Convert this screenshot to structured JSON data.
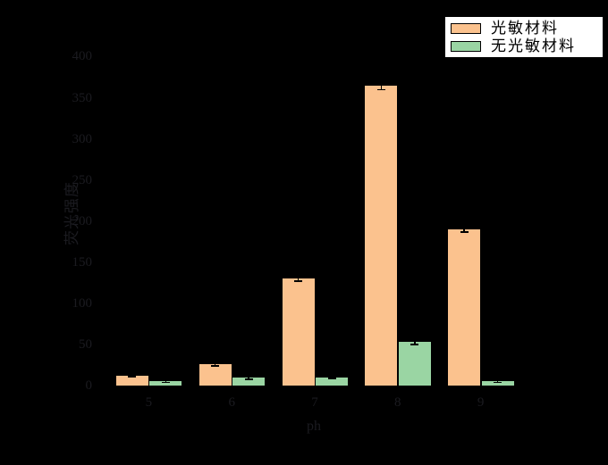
{
  "colors": {
    "background": "#000000",
    "axis_text": "#1b1b20",
    "error_bar": "#000000",
    "legend_background": "#ffffff",
    "legend_border": "#000000",
    "series1_color": "#fbc28e",
    "series2_color": "#9ad5a3"
  },
  "chart_data": {
    "type": "bar",
    "title": "",
    "xlabel": "ph",
    "ylabel": "荧光强度",
    "categories": [
      "5",
      "6",
      "7",
      "8",
      "9"
    ],
    "series": [
      {
        "name": "光敏材料",
        "color": "#fbc28e",
        "values": [
          12,
          26,
          130,
          365,
          190
        ],
        "errors": [
          1,
          2,
          3,
          5,
          3
        ]
      },
      {
        "name": "无光敏材料",
        "color": "#9ad5a3",
        "values": [
          5,
          10,
          10,
          53,
          5
        ],
        "errors": [
          1,
          2,
          1,
          3,
          1
        ]
      }
    ],
    "ylim": [
      0,
      420
    ],
    "yticks": [
      0,
      50,
      100,
      150,
      200,
      250,
      300,
      350,
      400
    ],
    "grid": false,
    "error_bars": true,
    "legend_position": "upper right"
  }
}
